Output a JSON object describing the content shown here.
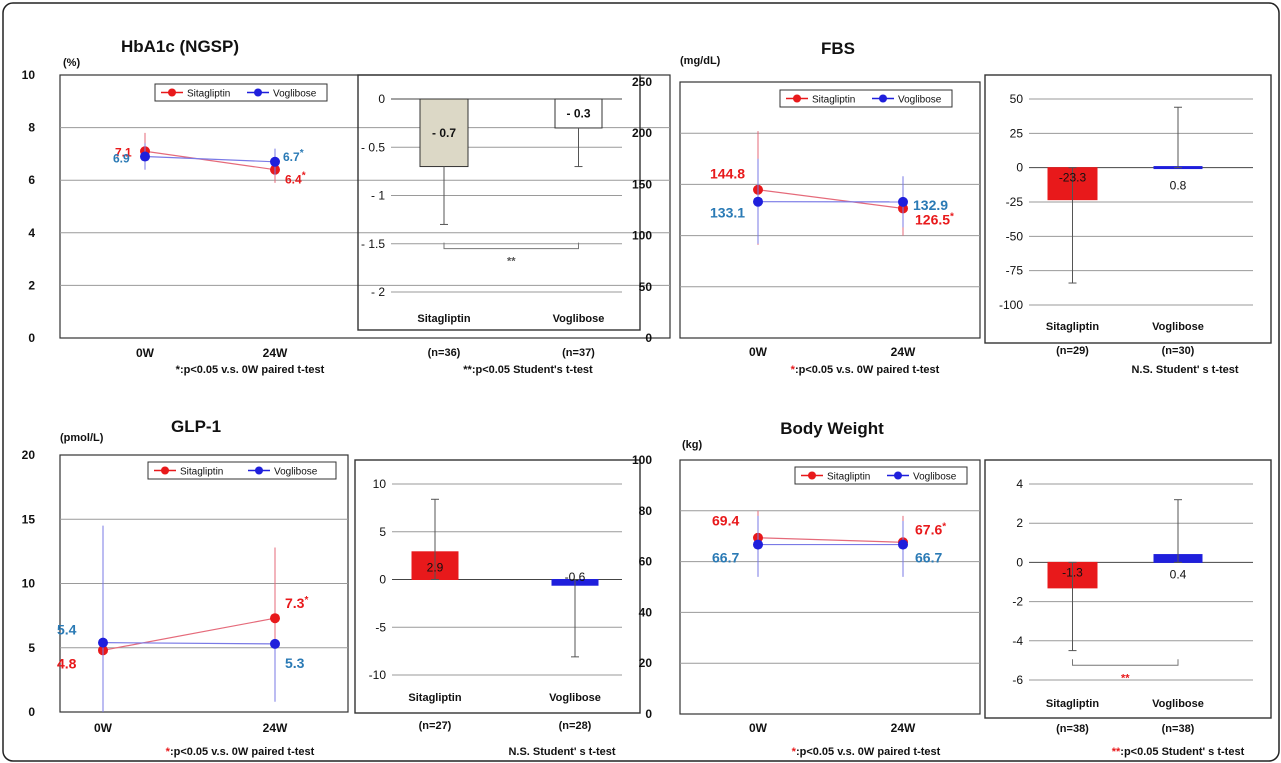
{
  "colors": {
    "red": "#e8191b",
    "blue": "#1f1fdc",
    "beige": "#dcd8c6",
    "label_blue": "#2a7ab5",
    "grid": "#9a9a9a"
  },
  "chart_data": [
    {
      "type": "line",
      "title": "HbA1c (NGSP)",
      "ylabel": "(%)",
      "categories": [
        "0W",
        "24W"
      ],
      "ylim": [
        0,
        10
      ],
      "yticks": [
        0,
        2,
        4,
        6,
        8,
        10
      ],
      "legend": "top-right",
      "series": [
        {
          "name": "Sitagliptin",
          "color": "#e8191b",
          "values": [
            7.1,
            6.4
          ],
          "err_upper": [
            7.8,
            6.9
          ],
          "err_lower": [
            6.4,
            5.9
          ],
          "labels": [
            "7.1",
            "6.4"
          ],
          "star": [
            false,
            true
          ]
        },
        {
          "name": "Voglibose",
          "color": "#1f1fdc",
          "values": [
            6.9,
            6.7
          ],
          "err_upper": [
            7.4,
            7.2
          ],
          "err_lower": [
            6.4,
            6.2
          ],
          "labels": [
            "6.9",
            "6.7"
          ],
          "star": [
            false,
            true
          ]
        }
      ],
      "footnote": "*:p<0.05 v.s. 0W paired t-test"
    },
    {
      "type": "bar",
      "categories": [
        "Sitagliptin",
        "Voglibose"
      ],
      "n_labels": [
        "(n=36)",
        "(n=37)"
      ],
      "values": [
        -0.7,
        -0.3
      ],
      "value_labels": [
        "- 0.7",
        "- 0.3"
      ],
      "err_lower": [
        -1.3,
        -0.7
      ],
      "ylim": [
        -2,
        0
      ],
      "yticks": [
        0,
        -0.5,
        -1,
        -1.5,
        -2
      ],
      "ytick_labels": [
        "0",
        "- 0.5",
        "- 1",
        "- 1.5",
        "- 2"
      ],
      "colors": [
        "#dcd8c6",
        "#ffffff"
      ],
      "significance": "**",
      "footnote": "**:p<0.05 Student's t-test"
    },
    {
      "type": "line",
      "title": "FBS",
      "ylabel": "(mg/dL)",
      "categories": [
        "0W",
        "24W"
      ],
      "ylim": [
        0,
        250
      ],
      "yticks": [
        0,
        50,
        100,
        150,
        200,
        250
      ],
      "legend": "top-right",
      "series": [
        {
          "name": "Sitagliptin",
          "color": "#e8191b",
          "values": [
            144.8,
            126.5
          ],
          "err_upper": [
            202,
            152
          ],
          "err_lower": [
            91,
            100
          ],
          "labels": [
            "144.8",
            "126.5"
          ],
          "star": [
            false,
            true
          ]
        },
        {
          "name": "Voglibose",
          "color": "#1f1fdc",
          "values": [
            133.1,
            132.9
          ],
          "err_upper": [
            175,
            158
          ],
          "err_lower": [
            92,
            108
          ],
          "labels": [
            "133.1",
            "132.9"
          ],
          "star": [
            false,
            false
          ]
        }
      ],
      "footnote_mark": "*",
      "footnote": ":p<0.05 v.s. 0W paired t-test"
    },
    {
      "type": "bar",
      "categories": [
        "Sitagliptin",
        "Voglibose"
      ],
      "n_labels": [
        "(n=29)",
        "(n=30)"
      ],
      "values": [
        -23.3,
        0.8
      ],
      "value_labels": [
        "-23.3",
        "0.8"
      ],
      "err_lower": [
        -84,
        0
      ],
      "err_upper": [
        0,
        44
      ],
      "ylim": [
        -100,
        50
      ],
      "yticks": [
        50,
        25,
        0,
        -25,
        -50,
        -75,
        -100
      ],
      "ytick_labels": [
        "50",
        "25",
        "0",
        "-25",
        "-50",
        "-75",
        "-100"
      ],
      "colors": [
        "#e8191b",
        "#1f1fdc"
      ],
      "footnote": "N.S. Student' s t-test"
    },
    {
      "type": "line",
      "title": "GLP-1",
      "ylabel": "(pmol/L)",
      "categories": [
        "0W",
        "24W"
      ],
      "ylim": [
        0,
        20
      ],
      "yticks": [
        0,
        5,
        10,
        15,
        20
      ],
      "legend": "top-right",
      "series": [
        {
          "name": "Sitagliptin",
          "color": "#e8191b",
          "values": [
            4.8,
            7.3
          ],
          "err_upper": [
            4.8,
            12.8
          ],
          "err_lower": [
            0,
            1.8
          ],
          "labels": [
            "4.8",
            "7.3"
          ],
          "star": [
            false,
            true
          ]
        },
        {
          "name": "Voglibose",
          "color": "#1f1fdc",
          "values": [
            5.4,
            5.3
          ],
          "err_upper": [
            14.5,
            5.3
          ],
          "err_lower": [
            0,
            0.8
          ],
          "labels": [
            "5.4",
            "5.3"
          ],
          "star": [
            false,
            false
          ]
        }
      ],
      "footnote_mark": "*",
      "footnote": ":p<0.05 v.s. 0W paired t-test"
    },
    {
      "type": "bar",
      "categories": [
        "Sitagliptin",
        "Voglibose"
      ],
      "n_labels": [
        "(n=27)",
        "(n=28)"
      ],
      "values": [
        2.9,
        -0.6
      ],
      "value_labels": [
        "2.9",
        "-0.6"
      ],
      "err_lower": [
        0,
        -8.1
      ],
      "err_upper": [
        8.4,
        0
      ],
      "ylim": [
        -10,
        10
      ],
      "yticks": [
        10,
        5,
        0,
        -5,
        -10
      ],
      "ytick_labels": [
        "10",
        "5",
        "0",
        "-5",
        "-10"
      ],
      "colors": [
        "#e8191b",
        "#1f1fdc"
      ],
      "footnote": "N.S. Student' s t-test"
    },
    {
      "type": "line",
      "title": "Body Weight",
      "ylabel": "(kg)",
      "categories": [
        "0W",
        "24W"
      ],
      "ylim": [
        0,
        100
      ],
      "yticks": [
        0,
        20,
        40,
        60,
        80,
        100
      ],
      "legend": "top-right",
      "series": [
        {
          "name": "Sitagliptin",
          "color": "#e8191b",
          "values": [
            69.4,
            67.6
          ],
          "err_upper": [
            80,
            78
          ],
          "err_lower": [
            55,
            55
          ],
          "labels": [
            "69.4",
            "67.6"
          ],
          "star": [
            false,
            true
          ]
        },
        {
          "name": "Voglibose",
          "color": "#1f1fdc",
          "values": [
            66.7,
            66.7
          ],
          "err_upper": [
            78,
            76
          ],
          "err_lower": [
            54,
            54
          ],
          "labels": [
            "66.7",
            "66.7"
          ],
          "star": [
            false,
            false
          ]
        }
      ],
      "footnote_mark": "*",
      "footnote": ":p<0.05 v.s. 0W paired t-test"
    },
    {
      "type": "bar",
      "categories": [
        "Sitagliptin",
        "Voglibose"
      ],
      "n_labels": [
        "(n=38)",
        "(n=38)"
      ],
      "values": [
        -1.3,
        0.4
      ],
      "value_labels": [
        "-1.3",
        "0.4"
      ],
      "err_lower": [
        -4.5,
        0
      ],
      "err_upper": [
        0,
        3.2
      ],
      "ylim": [
        -6,
        4
      ],
      "yticks": [
        4,
        2,
        0,
        -2,
        -4,
        -6
      ],
      "ytick_labels": [
        "4",
        "2",
        "0",
        "-2",
        "-4",
        "-6"
      ],
      "colors": [
        "#e8191b",
        "#1f1fdc"
      ],
      "significance": "**",
      "footnote_mark": "**",
      "footnote": ":p<0.05 Student' s t-test"
    }
  ]
}
